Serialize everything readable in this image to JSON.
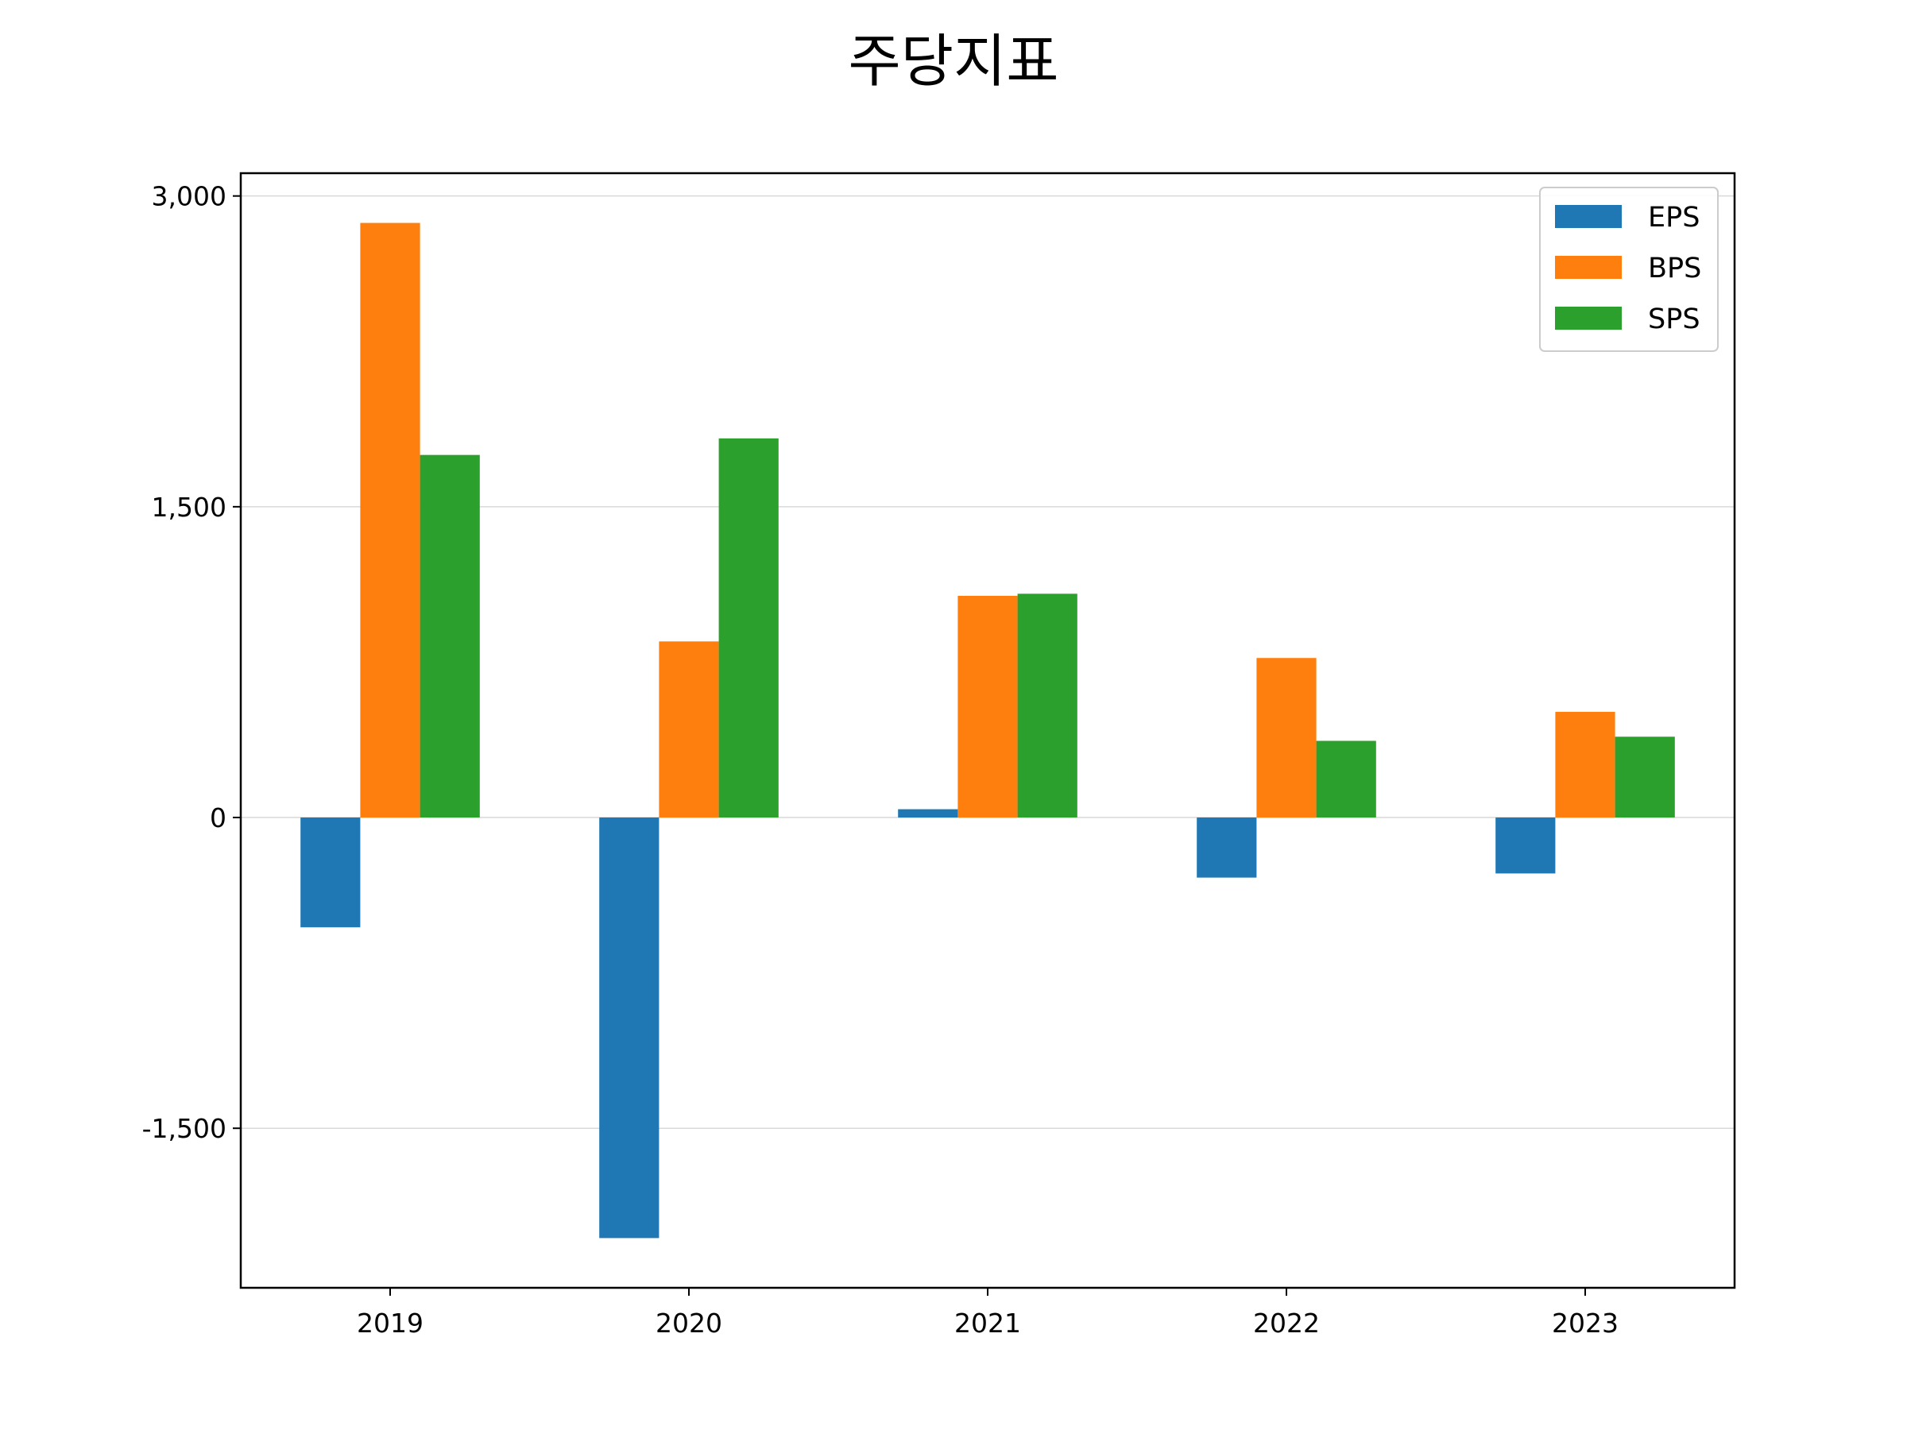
{
  "chart_data": {
    "type": "bar",
    "title": "주당지표",
    "xlabel": "",
    "ylabel": "",
    "categories": [
      "2019",
      "2020",
      "2021",
      "2022",
      "2023"
    ],
    "series": [
      {
        "name": "EPS",
        "color": "#1f77b4",
        "values": [
          -530,
          -2030,
          40,
          -290,
          -270
        ]
      },
      {
        "name": "BPS",
        "color": "#ff7f0e",
        "values": [
          2870,
          850,
          1070,
          770,
          510
        ]
      },
      {
        "name": "SPS",
        "color": "#2ca02c",
        "values": [
          1750,
          1830,
          1080,
          370,
          390
        ]
      }
    ],
    "ylim": [
      -2270,
      3110
    ],
    "yticks": [
      -1500,
      0,
      1500,
      3000
    ],
    "ytick_labels": [
      "-1,500",
      "0",
      "1,500",
      "3,000"
    ],
    "grid": "horizontal",
    "legend_position": "top-right"
  }
}
